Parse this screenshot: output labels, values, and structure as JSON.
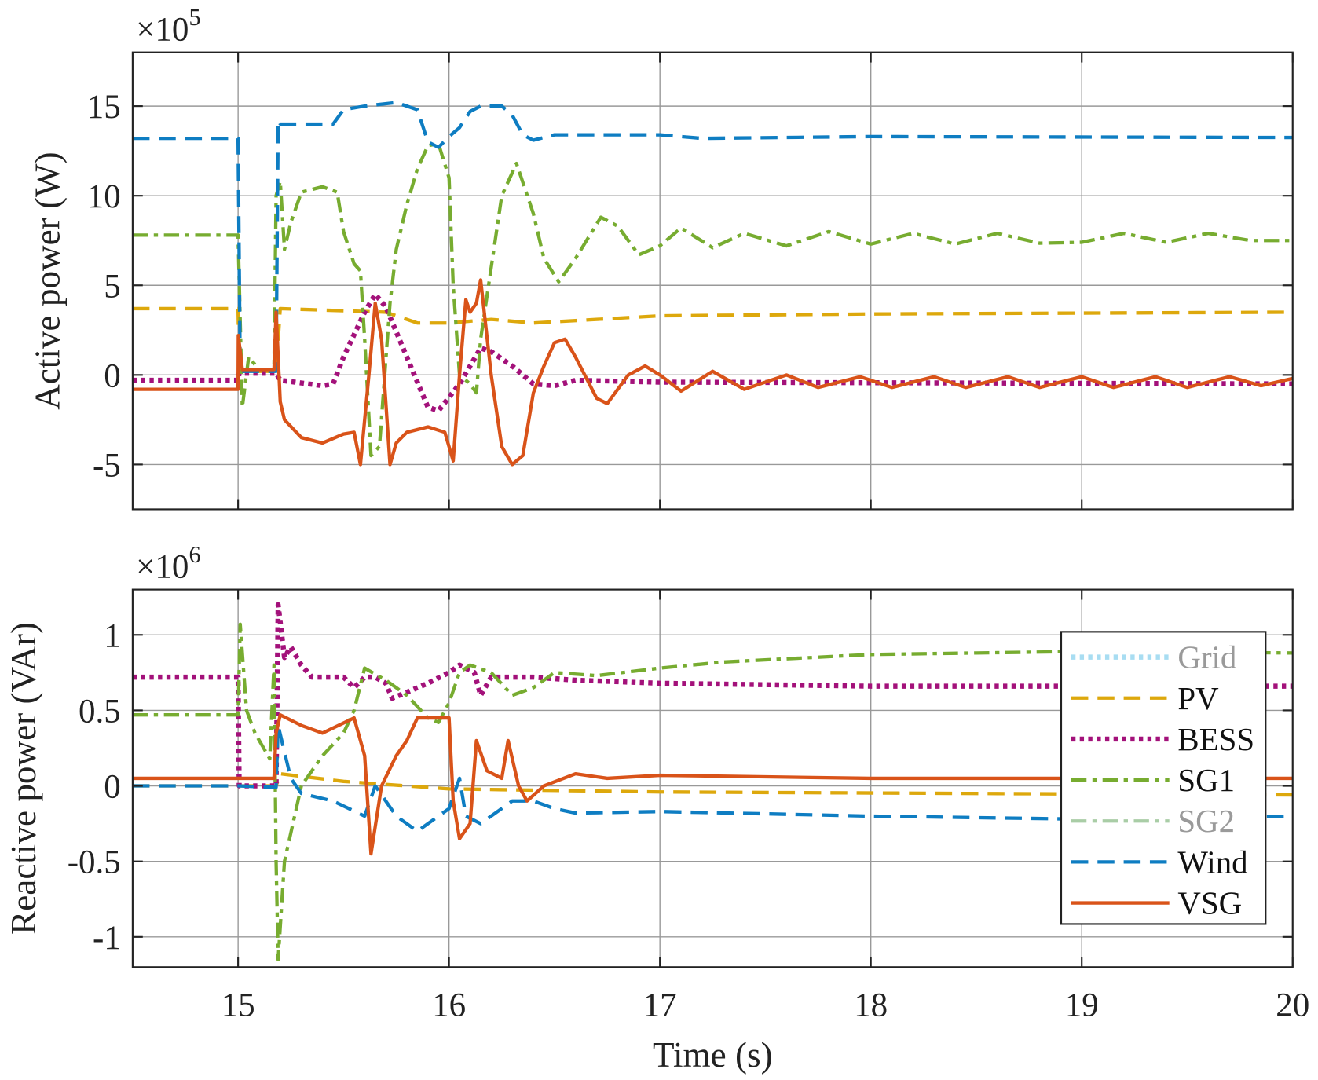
{
  "chart_data": [
    {
      "type": "line",
      "ylabel": "Active power (W)",
      "y_multiplier": "×10",
      "y_exponent": "5",
      "xlim": [
        14.5,
        20
      ],
      "ylim": [
        -7.5,
        18
      ],
      "xticks": [
        15,
        16,
        17,
        18,
        19,
        20
      ],
      "yticks": [
        -5,
        0,
        5,
        10,
        15
      ],
      "ytick_labels": [
        "-5",
        "0",
        "5",
        "10",
        "15"
      ],
      "grid": true,
      "series": [
        {
          "name": "PV",
          "style": "dashed",
          "color": "#DDA80C",
          "x": [
            14.5,
            15.0,
            15.005,
            15.18,
            15.2,
            15.7,
            15.85,
            16.0,
            16.2,
            16.4,
            17,
            18,
            20
          ],
          "y": [
            3.7,
            3.7,
            0.2,
            0.2,
            3.7,
            3.5,
            2.9,
            2.9,
            3.1,
            2.9,
            3.3,
            3.4,
            3.5
          ]
        },
        {
          "name": "BESS",
          "style": "dotted",
          "color": "#A3117A",
          "x": [
            14.5,
            15.0,
            15.005,
            15.18,
            15.2,
            15.4,
            15.45,
            15.5,
            15.6,
            15.65,
            15.7,
            15.8,
            15.9,
            15.95,
            16.05,
            16.15,
            16.2,
            16.3,
            16.4,
            16.5,
            16.6,
            17,
            20
          ],
          "y": [
            -0.3,
            -0.3,
            0.1,
            0.1,
            -0.3,
            -0.6,
            -0.5,
            1.0,
            3.5,
            4.5,
            3.8,
            1.0,
            -1.8,
            -2.0,
            -0.5,
            1.5,
            1.3,
            0.5,
            -0.5,
            -0.6,
            -0.3,
            -0.4,
            -0.5
          ]
        },
        {
          "name": "SG1",
          "style": "dashdot",
          "color": "#77AC30",
          "x": [
            14.5,
            15.0,
            15.02,
            15.05,
            15.1,
            15.17,
            15.18,
            15.2,
            15.22,
            15.25,
            15.3,
            15.4,
            15.47,
            15.5,
            15.55,
            15.58,
            15.6,
            15.63,
            15.67,
            15.72,
            15.75,
            15.8,
            15.85,
            15.9,
            15.95,
            16.0,
            16.02,
            16.05,
            16.1,
            16.13,
            16.15,
            16.2,
            16.25,
            16.32,
            16.4,
            16.45,
            16.52,
            16.6,
            16.72,
            16.8,
            16.9,
            17.0,
            17.1,
            17.25,
            17.4,
            17.6,
            17.8,
            18.0,
            18.2,
            18.4,
            18.6,
            18.8,
            19.0,
            19.2,
            19.4,
            19.6,
            19.8,
            20.0
          ],
          "y": [
            7.8,
            7.8,
            -1.8,
            1.0,
            0.3,
            0.3,
            10,
            10.8,
            7,
            8.5,
            10.2,
            10.5,
            10.2,
            8,
            6.2,
            5.8,
            2,
            -4.5,
            -4,
            4,
            7,
            9.5,
            11.5,
            12.8,
            12.9,
            11,
            5,
            0,
            -0.5,
            -1,
            2,
            6,
            10,
            11.8,
            9,
            6.5,
            5.2,
            6.5,
            8.8,
            8.3,
            6.7,
            7.2,
            8.2,
            7.1,
            7.9,
            7.2,
            8.0,
            7.3,
            7.9,
            7.3,
            7.9,
            7.35,
            7.4,
            7.9,
            7.4,
            7.9,
            7.5,
            7.5
          ]
        },
        {
          "name": "Wind",
          "style": "dashed",
          "color": "#0E7DC2",
          "x": [
            14.5,
            15.0,
            15.01,
            15.18,
            15.19,
            15.2,
            15.45,
            15.5,
            15.6,
            15.75,
            15.85,
            15.9,
            15.95,
            16.0,
            16.05,
            16.1,
            16.15,
            16.25,
            16.3,
            16.35,
            16.4,
            16.5,
            17,
            17.2,
            18,
            20
          ],
          "y": [
            13.2,
            13.2,
            0.2,
            0.2,
            14.2,
            14.0,
            14.0,
            14.8,
            15.0,
            15.2,
            14.8,
            13,
            12.7,
            13.3,
            13.8,
            14.7,
            15.0,
            15.0,
            14.5,
            13.4,
            13.1,
            13.4,
            13.4,
            13.2,
            13.3,
            13.25
          ]
        },
        {
          "name": "VSG",
          "style": "solid",
          "color": "#D95319",
          "x": [
            14.5,
            15.0,
            15.001,
            15.02,
            15.17,
            15.18,
            15.2,
            15.22,
            15.3,
            15.4,
            15.5,
            15.55,
            15.58,
            15.62,
            15.65,
            15.68,
            15.72,
            15.75,
            15.8,
            15.9,
            15.98,
            16.02,
            16.05,
            16.08,
            16.1,
            16.13,
            16.15,
            16.2,
            16.25,
            16.3,
            16.35,
            16.4,
            16.45,
            16.5,
            16.55,
            16.6,
            16.7,
            16.75,
            16.85,
            16.93,
            17.0,
            17.1,
            17.25,
            17.4,
            17.6,
            17.75,
            17.95,
            18.1,
            18.3,
            18.45,
            18.65,
            18.8,
            19.0,
            19.15,
            19.35,
            19.5,
            19.7,
            19.85,
            20.0
          ],
          "y": [
            -0.8,
            -0.8,
            2.2,
            0.3,
            0.3,
            3.5,
            -1.5,
            -2.5,
            -3.5,
            -3.8,
            -3.3,
            -3.2,
            -5,
            0,
            4,
            2,
            -5,
            -3.8,
            -3.2,
            -2.9,
            -3.2,
            -4.8,
            0,
            4.2,
            3.5,
            4.0,
            5.3,
            0,
            -4,
            -5,
            -4.5,
            -1,
            0.5,
            1.8,
            2,
            1.0,
            -1.3,
            -1.6,
            0,
            0.5,
            0,
            -0.9,
            0.2,
            -0.8,
            0,
            -0.7,
            -0.1,
            -0.7,
            -0.1,
            -0.7,
            -0.1,
            -0.7,
            -0.1,
            -0.7,
            -0.1,
            -0.7,
            -0.1,
            -0.6,
            -0.2
          ]
        }
      ]
    },
    {
      "type": "line",
      "xlabel": "Time (s)",
      "ylabel": "Reactive power (VAr)",
      "y_multiplier": "×10",
      "y_exponent": "6",
      "xlim": [
        14.5,
        20
      ],
      "ylim": [
        -1.2,
        1.3
      ],
      "xticks": [
        15,
        16,
        17,
        18,
        19,
        20
      ],
      "xtick_labels": [
        "15",
        "16",
        "17",
        "18",
        "19",
        "20"
      ],
      "yticks": [
        -1,
        -0.5,
        0,
        0.5,
        1
      ],
      "ytick_labels": [
        "-1",
        "-0.5",
        "0",
        "0.5",
        "1"
      ],
      "grid": true,
      "legend": {
        "placement": "right",
        "entries": [
          {
            "name": "Grid",
            "style": "dotted",
            "color": "#A8DDF2",
            "text_color": "#9A9A9A"
          },
          {
            "name": "PV",
            "style": "dashed",
            "color": "#DDA80C",
            "text_color": "#111111"
          },
          {
            "name": "BESS",
            "style": "dotted",
            "color": "#A3117A",
            "text_color": "#111111"
          },
          {
            "name": "SG1",
            "style": "dashdot",
            "color": "#77AC30",
            "text_color": "#111111"
          },
          {
            "name": "SG2",
            "style": "dashdot",
            "color": "#A9CDA6",
            "text_color": "#9A9A9A"
          },
          {
            "name": "Wind",
            "style": "dashed",
            "color": "#0E7DC2",
            "text_color": "#111111"
          },
          {
            "name": "VSG",
            "style": "solid",
            "color": "#D95319",
            "text_color": "#111111"
          }
        ]
      },
      "series": [
        {
          "name": "PV",
          "style": "dashed",
          "color": "#DDA80C",
          "x": [
            14.5,
            15.18,
            15.2,
            15.5,
            16,
            17,
            20
          ],
          "y": [
            0,
            0,
            0.08,
            0.03,
            -0.02,
            -0.04,
            -0.06
          ]
        },
        {
          "name": "BESS",
          "style": "dotted",
          "color": "#A3117A",
          "x": [
            14.5,
            15.0,
            15.005,
            15.18,
            15.19,
            15.22,
            15.25,
            15.3,
            15.35,
            15.5,
            15.55,
            15.6,
            15.65,
            15.7,
            15.73,
            15.8,
            15.9,
            16.0,
            16.05,
            16.12,
            16.15,
            16.2,
            16.4,
            16.6,
            17,
            18,
            20
          ],
          "y": [
            0.72,
            0.72,
            0,
            0,
            1.2,
            0.85,
            0.92,
            0.8,
            0.72,
            0.72,
            0.65,
            0.72,
            0.72,
            0.68,
            0.58,
            0.62,
            0.68,
            0.75,
            0.8,
            0.75,
            0.6,
            0.72,
            0.72,
            0.7,
            0.68,
            0.66,
            0.66
          ]
        },
        {
          "name": "SG1",
          "style": "dashdot",
          "color": "#77AC30",
          "x": [
            14.5,
            15.0,
            15.01,
            15.04,
            15.08,
            15.15,
            15.17,
            15.18,
            15.19,
            15.22,
            15.3,
            15.4,
            15.5,
            15.55,
            15.6,
            15.7,
            15.8,
            15.9,
            15.95,
            16.0,
            16.05,
            16.1,
            16.2,
            16.3,
            16.4,
            16.5,
            16.7,
            17,
            17.3,
            18,
            18.5,
            19,
            20
          ],
          "y": [
            0.47,
            0.47,
            1.07,
            0.5,
            0.35,
            0.18,
            0.8,
            -0.5,
            -1.15,
            -0.5,
            0.0,
            0.2,
            0.35,
            0.5,
            0.78,
            0.7,
            0.6,
            0.45,
            0.42,
            0.55,
            0.75,
            0.8,
            0.75,
            0.6,
            0.65,
            0.75,
            0.73,
            0.78,
            0.82,
            0.87,
            0.88,
            0.89,
            0.88
          ]
        },
        {
          "name": "Wind",
          "style": "dashed",
          "color": "#0E7DC2",
          "x": [
            14.5,
            15.0,
            15.18,
            15.19,
            15.25,
            15.3,
            15.45,
            15.6,
            15.65,
            15.75,
            15.85,
            15.95,
            16.0,
            16.05,
            16.08,
            16.15,
            16.3,
            16.4,
            16.5,
            16.6,
            17,
            18,
            19,
            20
          ],
          "y": [
            0,
            0,
            -0.01,
            0.4,
            0.05,
            -0.05,
            -0.1,
            -0.2,
            0.0,
            -0.2,
            -0.3,
            -0.2,
            -0.15,
            0.05,
            -0.2,
            -0.25,
            -0.1,
            -0.1,
            -0.15,
            -0.18,
            -0.17,
            -0.2,
            -0.22,
            -0.2
          ]
        },
        {
          "name": "VSG",
          "style": "solid",
          "color": "#D95319",
          "x": [
            14.5,
            15.17,
            15.18,
            15.2,
            15.3,
            15.4,
            15.55,
            15.6,
            15.63,
            15.68,
            15.75,
            15.8,
            15.85,
            16.0,
            16.02,
            16.05,
            16.1,
            16.13,
            16.18,
            16.25,
            16.28,
            16.33,
            16.37,
            16.45,
            16.6,
            16.75,
            17,
            18,
            20
          ],
          "y": [
            0.05,
            0.05,
            0.35,
            0.47,
            0.4,
            0.35,
            0.45,
            0.2,
            -0.45,
            0.0,
            0.2,
            0.3,
            0.45,
            0.45,
            -0.1,
            -0.35,
            -0.25,
            0.3,
            0.1,
            0.05,
            0.3,
            0,
            -0.1,
            0,
            0.08,
            0.05,
            0.07,
            0.05,
            0.05
          ]
        }
      ]
    }
  ]
}
